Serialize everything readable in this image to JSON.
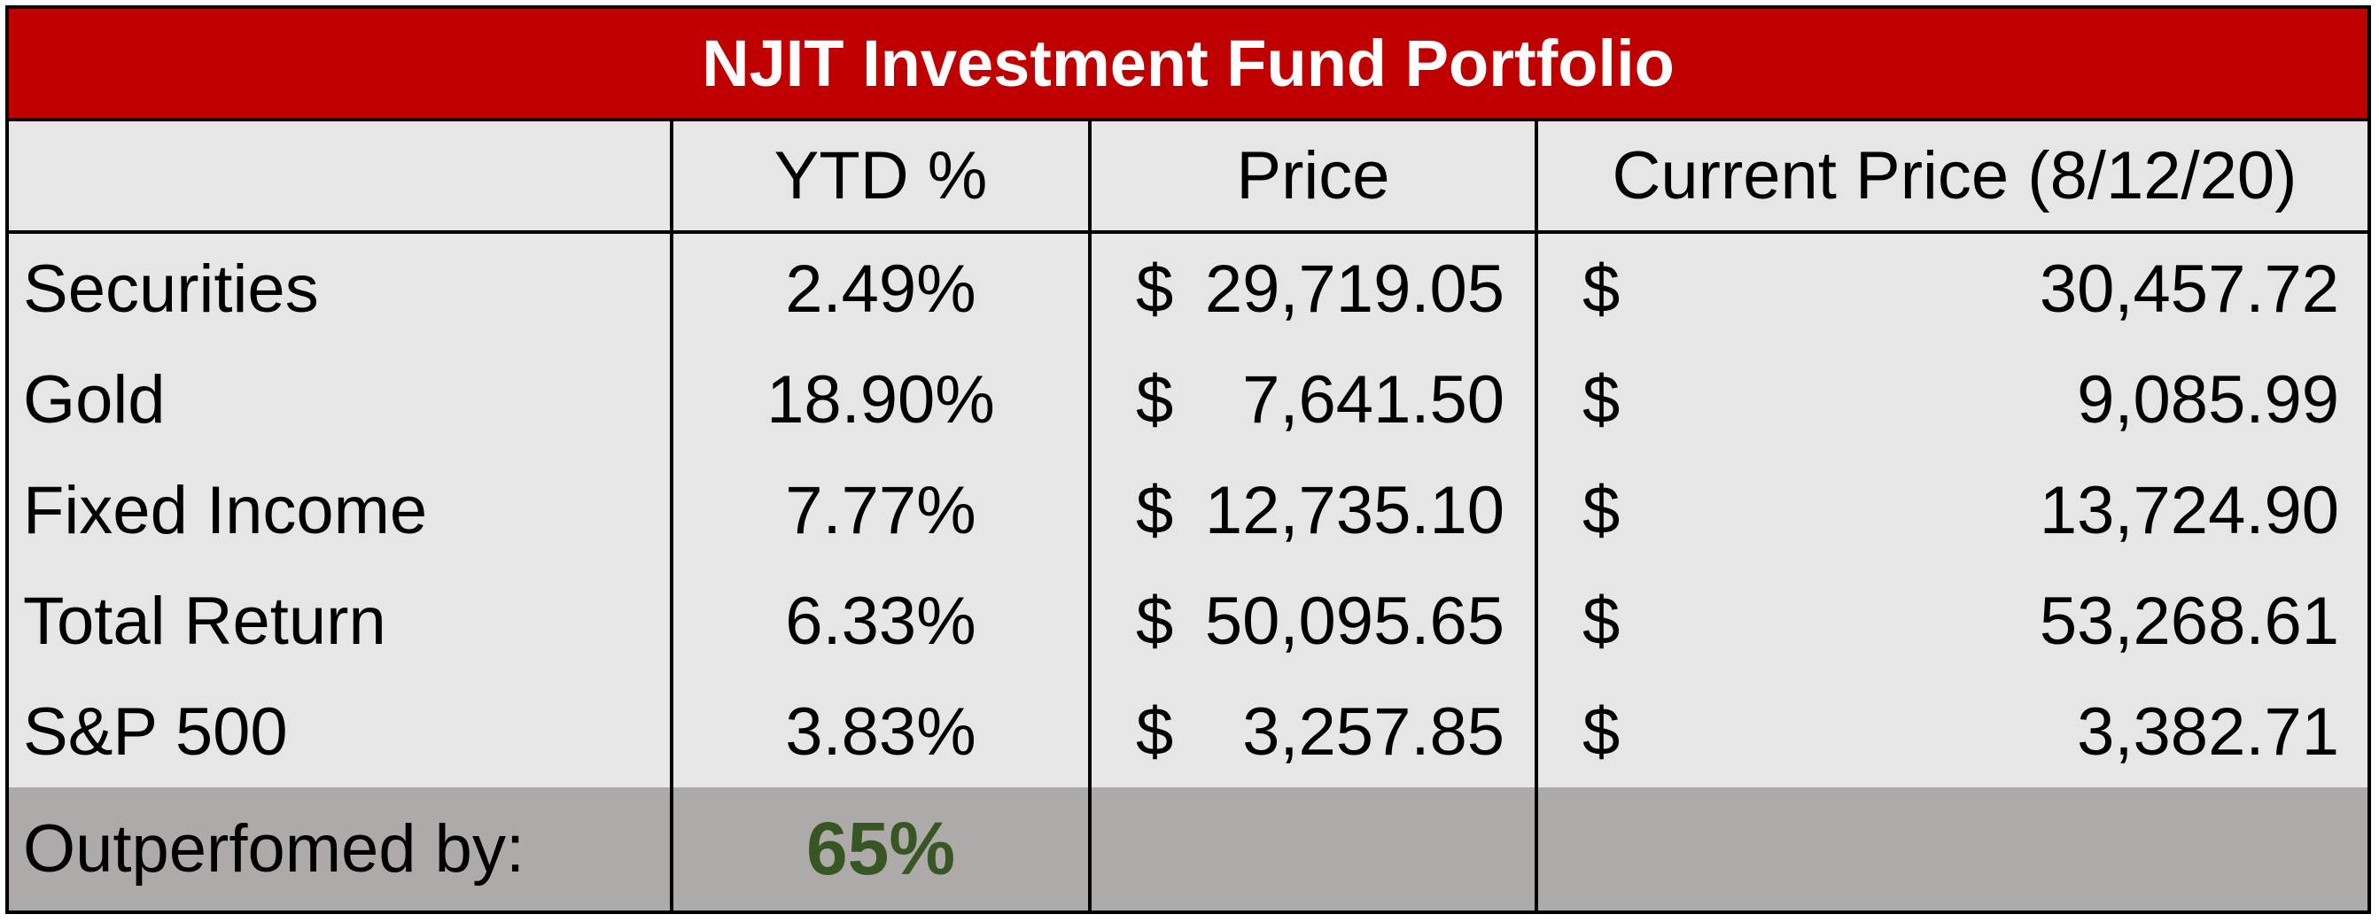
{
  "title": "NJIT Investment Fund Portfolio",
  "header": {
    "col1": "",
    "col2": "YTD %",
    "col3": "Price",
    "col4": "Current Price (8/12/20)"
  },
  "rows": [
    {
      "name": "Securities",
      "ytd": "2.49%",
      "price_symbol": "$",
      "price": "29,719.05",
      "current_symbol": "$",
      "current": "30,457.72"
    },
    {
      "name": "Gold",
      "ytd": "18.90%",
      "price_symbol": "$",
      "price": "7,641.50",
      "current_symbol": "$",
      "current": "9,085.99"
    },
    {
      "name": "Fixed Income",
      "ytd": "7.77%",
      "price_symbol": "$",
      "price": "12,735.10",
      "current_symbol": "$",
      "current": "13,724.90"
    },
    {
      "name": "Total Return",
      "ytd": "6.33%",
      "price_symbol": "$",
      "price": "50,095.65",
      "current_symbol": "$",
      "current": "53,268.61"
    },
    {
      "name": "S&P 500",
      "ytd": "3.83%",
      "price_symbol": "$",
      "price": "3,257.85",
      "current_symbol": "$",
      "current": "3,382.71"
    }
  ],
  "footer": {
    "label": "Outperfomed by:",
    "value": "65%"
  },
  "colors": {
    "title_bg": "#c00000",
    "title_text": "#ffffff",
    "body_bg": "#e7e6e6",
    "footer_bg": "#aeaaaa",
    "highlight_text": "#375623"
  }
}
